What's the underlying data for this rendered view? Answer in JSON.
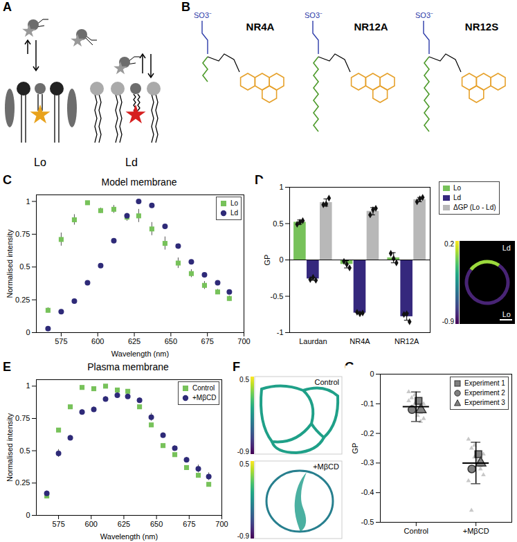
{
  "panel_labels": [
    "A",
    "B",
    "C",
    "D",
    "E",
    "F",
    "G"
  ],
  "diagram_a": {
    "domains": [
      "Lo",
      "Ld"
    ]
  },
  "structures_b": {
    "names": [
      "NR4A",
      "NR12A",
      "NR12S"
    ],
    "head_group": "SO3⁻"
  },
  "chart_data": [
    {
      "panel": "C",
      "type": "scatter",
      "title": "Model membrane",
      "x_label": "Wavelength (nm)",
      "y_label": "Normalised intensity",
      "x": [
        566,
        575,
        584,
        593,
        602,
        611,
        620,
        628,
        637,
        646,
        655,
        664,
        673,
        682,
        690
      ],
      "series": [
        {
          "name": "Lo",
          "color": "#77c25a",
          "marker": "square",
          "values": [
            0.17,
            0.71,
            0.86,
            0.99,
            0.93,
            0.94,
            0.88,
            0.89,
            0.79,
            0.68,
            0.53,
            0.45,
            0.36,
            0.31,
            0.26
          ],
          "errors": [
            0.02,
            0.05,
            0.04,
            0.01,
            0.02,
            0.03,
            0.03,
            0.05,
            0.05,
            0.05,
            0.04,
            0.03,
            0.03,
            0.02,
            0.02
          ]
        },
        {
          "name": "Ld",
          "color": "#2e2a78",
          "marker": "circle",
          "values": [
            0.03,
            0.16,
            0.24,
            0.38,
            0.51,
            0.7,
            0.89,
            1.0,
            0.97,
            0.81,
            0.66,
            0.54,
            0.44,
            0.38,
            0.31
          ],
          "errors": [
            0.01,
            0.01,
            0.01,
            0.01,
            0.01,
            0.01,
            0.01,
            0.01,
            0.01,
            0.01,
            0.01,
            0.01,
            0.01,
            0.01,
            0.01
          ]
        }
      ],
      "xlim": [
        558,
        700
      ],
      "xticks": [
        575,
        600,
        625,
        650,
        675,
        700
      ],
      "ylim": [
        0,
        1.05
      ],
      "yticks": [
        0,
        0.25,
        0.5,
        0.75,
        1
      ],
      "legend": "top-right"
    },
    {
      "panel": "D",
      "type": "bar",
      "y_label": "GP",
      "categories": [
        "Laurdan",
        "NR4A",
        "NR12A"
      ],
      "series": [
        {
          "name": "Lo",
          "color": "#77c25a",
          "values": [
            0.52,
            -0.06,
            0.03
          ],
          "errors": [
            0.03,
            0.05,
            0.07
          ],
          "replicates": [
            [
              0.49,
              0.52,
              0.54
            ],
            [
              -0.02,
              -0.06,
              -0.11
            ],
            [
              0.09,
              0.02,
              -0.04
            ]
          ]
        },
        {
          "name": "Ld",
          "color": "#35287d",
          "values": [
            -0.26,
            -0.73,
            -0.78
          ],
          "errors": [
            0.02,
            0.01,
            0.05
          ],
          "replicates": [
            [
              -0.27,
              -0.24,
              -0.28
            ],
            [
              -0.72,
              -0.74,
              -0.73
            ],
            [
              -0.75,
              -0.74,
              -0.85
            ]
          ]
        },
        {
          "name": "ΔGP (Lo - Ld)",
          "color": "#b8b8b8",
          "values": [
            0.79,
            0.67,
            0.83
          ],
          "errors": [
            0.05,
            0.05,
            0.03
          ],
          "replicates": [
            [
              0.76,
              0.77,
              0.85
            ],
            [
              0.62,
              0.69,
              0.71
            ],
            [
              0.8,
              0.84,
              0.86
            ]
          ]
        }
      ],
      "ylim": [
        -1,
        1
      ],
      "yticks": [
        -1,
        -0.5,
        0,
        0.5,
        1
      ],
      "legend": "top-right",
      "inset": {
        "labels": [
          "Ld",
          "Lo"
        ],
        "colorbar_range": [
          -0.9,
          0.2
        ],
        "colorbar_ticks": [
          -0.9,
          0.2
        ]
      }
    },
    {
      "panel": "E",
      "type": "scatter",
      "title": "Plasma membrane",
      "x_label": "Wavelength (nm)",
      "y_label": "Normalised intensity",
      "x": [
        566,
        575,
        584,
        593,
        602,
        611,
        620,
        628,
        637,
        646,
        655,
        664,
        673,
        682,
        690
      ],
      "series": [
        {
          "name": "Control",
          "color": "#77c25a",
          "marker": "square",
          "values": [
            0.15,
            0.66,
            0.84,
            0.99,
            0.98,
            1.0,
            0.97,
            0.96,
            0.84,
            0.7,
            0.54,
            0.47,
            0.37,
            0.31,
            0.24
          ],
          "errors": [
            0.01,
            0.01,
            0.01,
            0.01,
            0.01,
            0.01,
            0.01,
            0.01,
            0.01,
            0.01,
            0.01,
            0.01,
            0.01,
            0.01,
            0.01
          ]
        },
        {
          "name": "+MβCD",
          "color": "#2e2a78",
          "marker": "circle",
          "values": [
            0.17,
            0.48,
            0.6,
            0.8,
            0.82,
            0.9,
            0.93,
            0.92,
            0.89,
            0.76,
            0.62,
            0.52,
            0.43,
            0.36,
            0.3
          ],
          "errors": [
            0.02,
            0.03,
            0.02,
            0.02,
            0.02,
            0.02,
            0.02,
            0.02,
            0.02,
            0.03,
            0.02,
            0.02,
            0.02,
            0.03,
            0.03
          ]
        }
      ],
      "xlim": [
        558,
        700
      ],
      "xticks": [
        575,
        600,
        625,
        650,
        675,
        700
      ],
      "ylim": [
        0,
        1.05
      ],
      "yticks": [
        0,
        0.25,
        0.5,
        0.75,
        1
      ],
      "legend": "top-right"
    },
    {
      "panel": "F",
      "type": "image",
      "labels": [
        "Control",
        "+MβCD"
      ],
      "colorbar_range": [
        -0.9,
        0.5
      ],
      "colorbar_ticks": [
        -0.9,
        0.5
      ]
    },
    {
      "panel": "G",
      "type": "scatter",
      "y_label": "GP",
      "categories": [
        "Control",
        "+MβCD"
      ],
      "points": [
        [
          -0.06,
          -0.08,
          -0.1,
          -0.12,
          -0.13,
          -0.15,
          -0.09,
          -0.11,
          -0.07,
          -0.14,
          -0.16,
          -0.1
        ],
        [
          -0.22,
          -0.25,
          -0.28,
          -0.3,
          -0.32,
          -0.34,
          -0.36,
          -0.46,
          -0.24,
          -0.29,
          -0.31,
          -0.27
        ]
      ],
      "series": [
        {
          "name": "Experiment 1",
          "marker": "square",
          "color": "#808080",
          "values": [
            -0.09,
            -0.27
          ]
        },
        {
          "name": "Experiment 2",
          "marker": "circle",
          "color": "#808080",
          "values": [
            -0.12,
            -0.32
          ]
        },
        {
          "name": "Experiment 3",
          "marker": "triangle",
          "color": "#808080",
          "values": [
            -0.12,
            -0.3
          ]
        }
      ],
      "means": [
        -0.11,
        -0.3
      ],
      "sd": [
        0.05,
        0.07
      ],
      "ylim": [
        -0.5,
        0
      ],
      "yticks": [
        -0.5,
        -0.4,
        -0.3,
        -0.2,
        -0.1,
        0
      ],
      "legend": "top-right"
    }
  ]
}
